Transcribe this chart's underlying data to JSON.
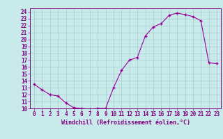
{
  "x": [
    0,
    1,
    2,
    3,
    4,
    5,
    6,
    7,
    8,
    9,
    10,
    11,
    12,
    13,
    14,
    15,
    16,
    17,
    18,
    19,
    20,
    21,
    22,
    23
  ],
  "y": [
    13.5,
    12.7,
    12.0,
    11.8,
    10.8,
    10.1,
    10.0,
    9.9,
    10.0,
    10.0,
    13.0,
    15.5,
    17.0,
    17.4,
    20.5,
    21.8,
    22.3,
    23.5,
    23.8,
    23.6,
    23.3,
    22.7,
    16.6,
    16.5
  ],
  "line_color": "#990099",
  "marker": "+",
  "bg_color": "#c8eaea",
  "grid_color": "#a8cccc",
  "xlim": [
    -0.5,
    23.5
  ],
  "ylim": [
    10,
    24.5
  ],
  "yticks": [
    10,
    11,
    12,
    13,
    14,
    15,
    16,
    17,
    18,
    19,
    20,
    21,
    22,
    23,
    24
  ],
  "xticks": [
    0,
    1,
    2,
    3,
    4,
    5,
    6,
    7,
    8,
    9,
    10,
    11,
    12,
    13,
    14,
    15,
    16,
    17,
    18,
    19,
    20,
    21,
    22,
    23
  ],
  "xlabel": "Windchill (Refroidissement éolien,°C)",
  "xlabel_color": "#800080",
  "tick_color": "#800080",
  "axis_color": "#800080",
  "spine_color": "#800080",
  "tick_fontsize": 5.5,
  "xlabel_fontsize": 6.0
}
